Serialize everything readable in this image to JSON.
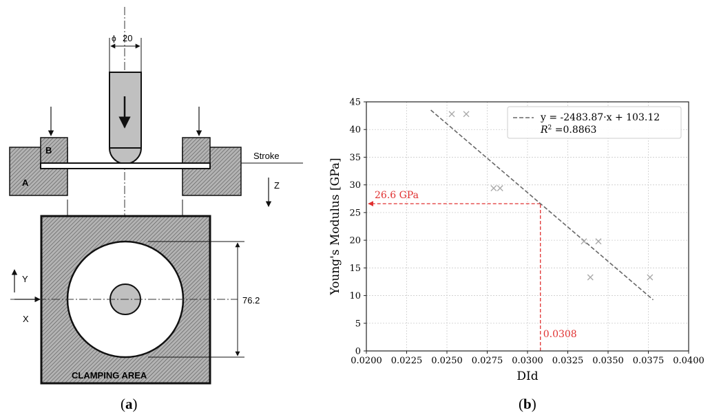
{
  "panel_a": {
    "diameter_symbol": "ϕ",
    "diameter_value": "20",
    "label_b": "B",
    "label_a": "A",
    "stroke_label": "Stroke",
    "z_label": "Z",
    "y_label": "Y",
    "x_label": "X",
    "dimension_76": "76.2",
    "clamping_label": "CLAMPING AREA",
    "caption_letter": "a",
    "colors": {
      "hatch_fill": "#b3b3b3",
      "indenter": "#c0c0c0",
      "line": "#111111"
    }
  },
  "panel_b": {
    "caption_letter": "b"
  },
  "chart_data": {
    "type": "scatter",
    "xlabel": "DId",
    "ylabel": "Young's Modulus [GPa]",
    "xlim": [
      0.02,
      0.04
    ],
    "ylim": [
      0,
      45
    ],
    "xticks": [
      "0.0200",
      "0.0225",
      "0.0250",
      "0.0275",
      "0.0300",
      "0.0325",
      "0.0350",
      "0.0375",
      "0.0400"
    ],
    "yticks": [
      "0",
      "5",
      "10",
      "15",
      "20",
      "25",
      "30",
      "35",
      "40",
      "45"
    ],
    "grid": true,
    "legend_placement": "top-right",
    "points": [
      {
        "x": 0.0253,
        "y": 42.8
      },
      {
        "x": 0.0262,
        "y": 42.8
      },
      {
        "x": 0.0279,
        "y": 29.4
      },
      {
        "x": 0.0283,
        "y": 29.4
      },
      {
        "x": 0.0335,
        "y": 19.8
      },
      {
        "x": 0.0344,
        "y": 19.8
      },
      {
        "x": 0.0339,
        "y": 13.3
      },
      {
        "x": 0.0376,
        "y": 13.3
      }
    ],
    "fit": {
      "slope": -2483.87,
      "intercept": 103.12,
      "x_range": [
        0.024,
        0.0378
      ],
      "legend_equation": "y = -2483.87·x + 103.12",
      "legend_r2_label": "R",
      "legend_r2_value": " =0.8863"
    },
    "annotation": {
      "x_value": 0.0308,
      "y_value": 26.6,
      "x_text": "0.0308",
      "y_text": "26.6 GPa",
      "color": "#e03030"
    },
    "colors": {
      "fit": "#666666",
      "points": "#aaaaaa",
      "grid": "#cccccc"
    }
  }
}
